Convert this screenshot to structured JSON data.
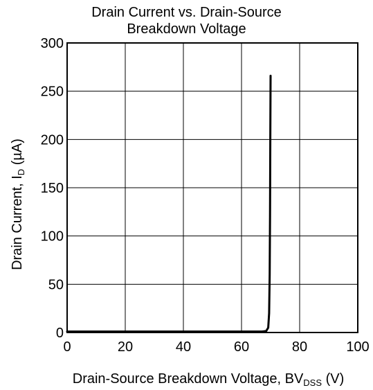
{
  "chart_data": {
    "type": "line",
    "title_line1": "Drain Current vs. Drain-Source",
    "title_line2": "Breakdown Voltage",
    "xlabel": {
      "prefix": "Drain-Source Breakdown Voltage, BV",
      "subscript": "DSS",
      "suffix": " (V)"
    },
    "ylabel": {
      "prefix": "Drain Current, I",
      "subscript": "D",
      "suffix": " (µA)"
    },
    "xlim": [
      0,
      100
    ],
    "ylim": [
      0,
      300
    ],
    "xticks": [
      0,
      20,
      40,
      60,
      80,
      100
    ],
    "yticks": [
      0,
      50,
      100,
      150,
      200,
      250,
      300
    ],
    "grid": true,
    "series": [
      {
        "color": "#000000",
        "x": [
          0,
          20,
          40,
          60,
          67,
          68.5,
          69.2,
          69.5,
          69.7,
          69.8,
          69.9,
          70.0
        ],
        "y": [
          1,
          1,
          1,
          1,
          1,
          1.5,
          5,
          20,
          60,
          120,
          200,
          266
        ]
      }
    ]
  }
}
